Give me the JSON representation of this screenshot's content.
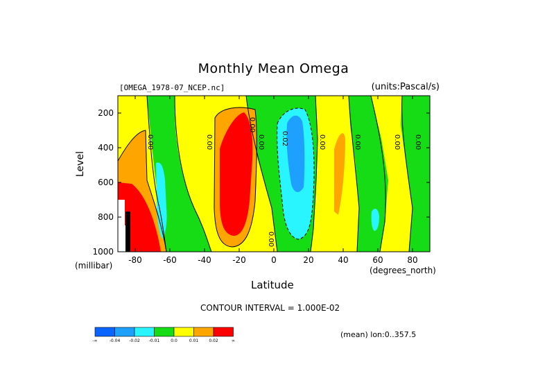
{
  "chart_data": {
    "type": "heatmap",
    "title": "Monthly Mean Omega",
    "file_label": "[OMEGA_1978-07_NCEP.nc]",
    "units_label": "(units:Pascal/s)",
    "xlabel": "Latitude",
    "x_unit": "(degrees_north)",
    "ylabel": "Level",
    "y_unit": "(millibar)",
    "x_ticks": [
      "-80",
      "-60",
      "-40",
      "-20",
      "0",
      "20",
      "40",
      "60",
      "80"
    ],
    "x_tick_values": [
      -80,
      -60,
      -40,
      -20,
      0,
      20,
      40,
      60,
      80
    ],
    "y_ticks": [
      "200",
      "400",
      "600",
      "800",
      "1000"
    ],
    "y_tick_values": [
      200,
      400,
      600,
      800,
      1000
    ],
    "xlim": [
      -90,
      90
    ],
    "ylim": [
      1000,
      100
    ],
    "contour_interval_text": "CONTOUR INTERVAL = 1.000E-02",
    "mean_text": "(mean) lon:0..357.5",
    "colorbar": {
      "colors": [
        "#0a64ff",
        "#1ea0ff",
        "#28f5ff",
        "#16dc16",
        "#ffff00",
        "#ffa500",
        "#ff0000"
      ],
      "labels": [
        "-∞",
        "-0.04",
        "-0.02",
        "-0.01",
        "0.0",
        "0.01",
        "0.02",
        "∞"
      ]
    },
    "contour_labels": [
      "0.00",
      "0.00",
      "0.00",
      "0.02",
      "0.00",
      "0.00",
      "0.00",
      "0.00",
      "0.00",
      "0.00"
    ]
  }
}
